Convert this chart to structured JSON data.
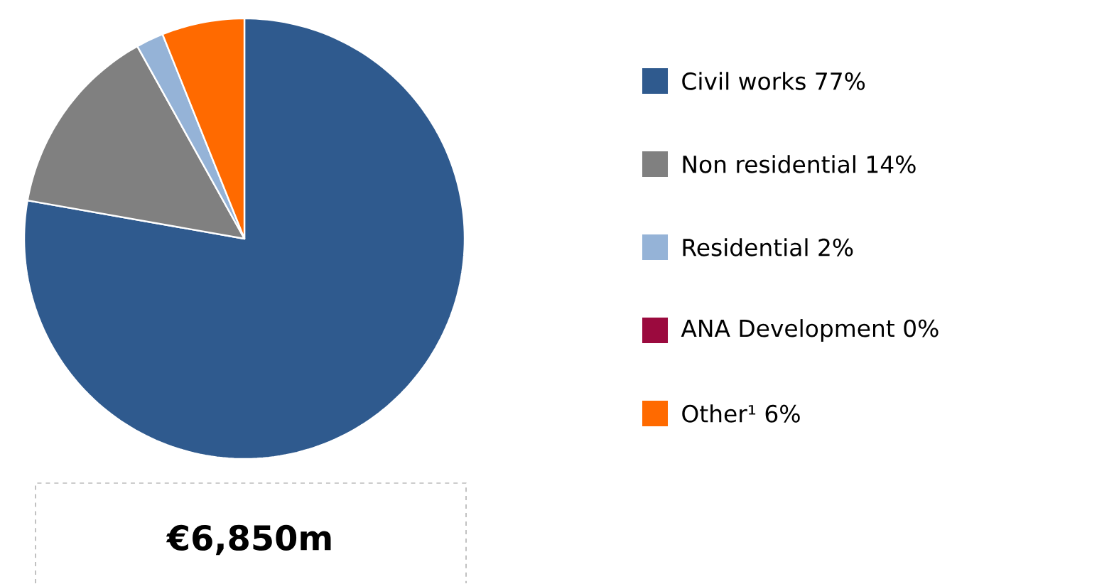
{
  "chart_data": {
    "type": "pie",
    "categories": [
      "Civil works",
      "Non residential",
      "Residential",
      "ANA Development",
      "Other¹"
    ],
    "values": [
      77,
      14,
      2,
      0,
      6
    ],
    "value_labels": [
      "77%",
      "14%",
      "2%",
      "0%",
      "6%"
    ],
    "colors": [
      "#2f5a8e",
      "#808080",
      "#95b3d7",
      "#9b0a3e",
      "#ff6a00"
    ],
    "legend": "right",
    "annotations": [
      "€6,850m"
    ]
  }
}
